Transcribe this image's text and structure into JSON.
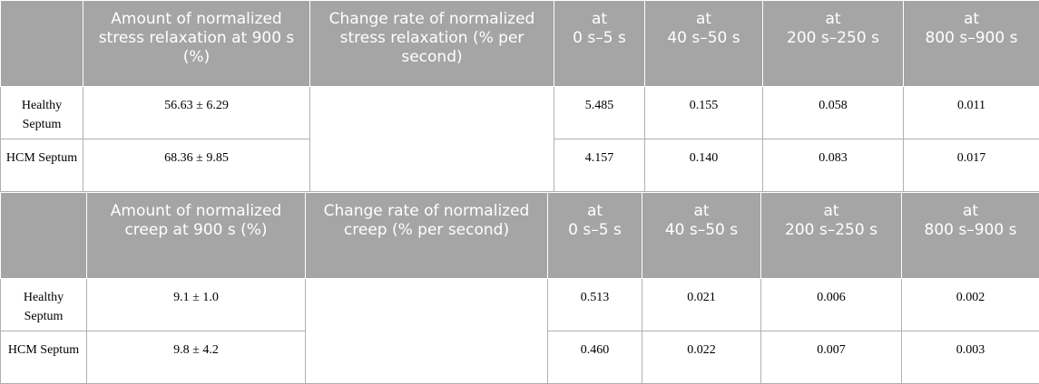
{
  "tables": [
    {
      "header": [
        "",
        "Amount of normalized stress relaxation at 900 s (%)",
        "Change rate of normalized stress relaxation (% per second)",
        [
          "at",
          "0 s–5 s"
        ],
        [
          "at",
          "40 s–50 s"
        ],
        [
          "at",
          "200 s–250 s"
        ],
        [
          "at",
          "800 s–900 s"
        ]
      ],
      "rows": [
        [
          "Healthy Septum",
          "56.63 ± 6.29",
          "5.485",
          "0.155",
          "0.058",
          "0.011"
        ],
        [
          "HCM Septum",
          "68.36 ± 9.85",
          "4.157",
          "0.140",
          "0.083",
          "0.017"
        ]
      ]
    },
    {
      "header": [
        "",
        "Amount of normalized creep at 900 s (%)",
        "Change rate of normalized creep (% per second)",
        [
          "at",
          "0 s–5 s"
        ],
        [
          "at",
          "40 s–50 s"
        ],
        [
          "at",
          "200 s–250 s"
        ],
        [
          "at",
          "800 s–900 s"
        ]
      ],
      "rows": [
        [
          "Healthy Septum",
          "9.1 ± 1.0",
          "0.513",
          "0.021",
          "0.006",
          "0.002"
        ],
        [
          "HCM Septum",
          "9.8 ± 4.2",
          "0.460",
          "0.022",
          "0.007",
          "0.003"
        ]
      ]
    }
  ]
}
